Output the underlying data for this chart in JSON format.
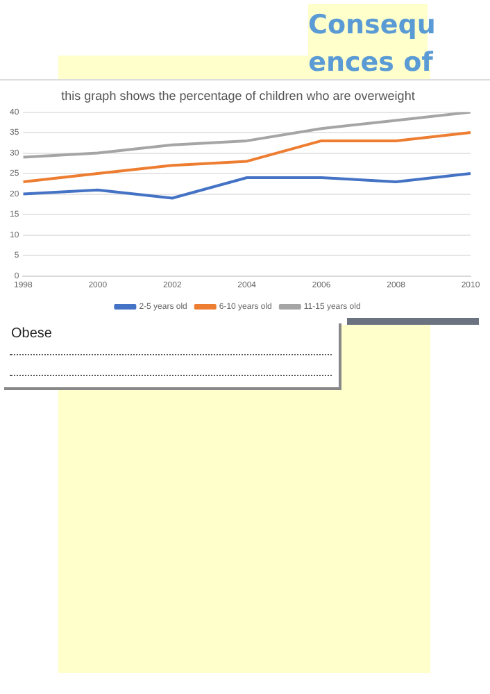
{
  "chart_data": {
    "type": "line",
    "title": "this graph shows the percentage of children who are overweight",
    "x": [
      1998,
      2000,
      2002,
      2004,
      2006,
      2008,
      2010
    ],
    "series": [
      {
        "name": "2-5 years old",
        "color": "#4472c4",
        "values": [
          20,
          21,
          19,
          24,
          24,
          23,
          25
        ]
      },
      {
        "name": "6-10 years old",
        "color": "#ed7d31",
        "values": [
          23,
          25,
          27,
          28,
          33,
          33,
          35
        ]
      },
      {
        "name": "11-15 years old",
        "color": "#a5a5a5",
        "values": [
          29,
          30,
          32,
          33,
          36,
          38,
          40
        ]
      }
    ],
    "xlim": [
      1998,
      2010
    ],
    "xticks": [
      1998,
      2000,
      2002,
      2004,
      2006,
      2008,
      2010
    ],
    "ylim": [
      0,
      40
    ],
    "yticks": [
      0,
      5,
      10,
      15,
      20,
      25,
      30,
      35,
      40
    ],
    "grid": "y",
    "legend": "bottom",
    "marker": "none",
    "line_style": "solid",
    "annotations": [
      "Consequ",
      "ences of",
      "Obese"
    ]
  }
}
